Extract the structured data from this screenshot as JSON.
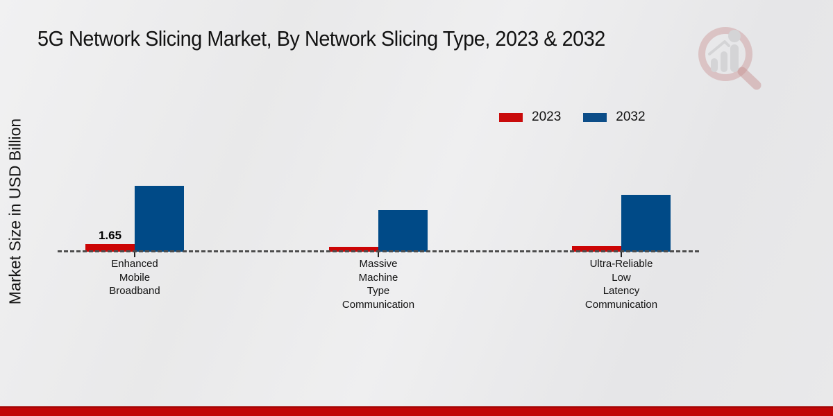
{
  "title": "5G Network Slicing Market, By Network Slicing Type, 2023 & 2032",
  "y_axis_label": "Market Size in USD Billion",
  "legend": [
    {
      "label": "2023",
      "color": "#c90b0b"
    },
    {
      "label": "2032",
      "color": "#0c4d88"
    }
  ],
  "colors": {
    "bar_2023": "#cc0505",
    "bar_2032": "#004a87",
    "axis_dash": "#4d4d4d",
    "footer": "#c10606",
    "background": "#e9e9ea"
  },
  "chart_data": {
    "type": "bar",
    "title": "5G Network Slicing Market, By Network Slicing Type, 2023 & 2032",
    "xlabel": "",
    "ylabel": "Market Size in USD Billion",
    "categories": [
      "Enhanced Mobile Broadband",
      "Massive Machine Type Communication",
      "Ultra-Reliable Low Latency Communication"
    ],
    "category_lines": [
      [
        "Enhanced",
        "Mobile",
        "Broadband"
      ],
      [
        "Massive",
        "Machine",
        "Type",
        "Communication"
      ],
      [
        "Ultra-Reliable",
        "Low",
        "Latency",
        "Communication"
      ]
    ],
    "series": [
      {
        "name": "2023",
        "color": "#cc0505",
        "values": [
          1.65,
          1.05,
          1.2
        ],
        "data_labels": [
          "1.65",
          "",
          ""
        ]
      },
      {
        "name": "2032",
        "color": "#004a87",
        "values": [
          14.25,
          9.0,
          12.3
        ],
        "data_labels": [
          "",
          "",
          ""
        ]
      }
    ],
    "ylim": [
      0,
      16
    ],
    "grid": false,
    "baseline": "dashed",
    "legend_position": "top-right"
  }
}
